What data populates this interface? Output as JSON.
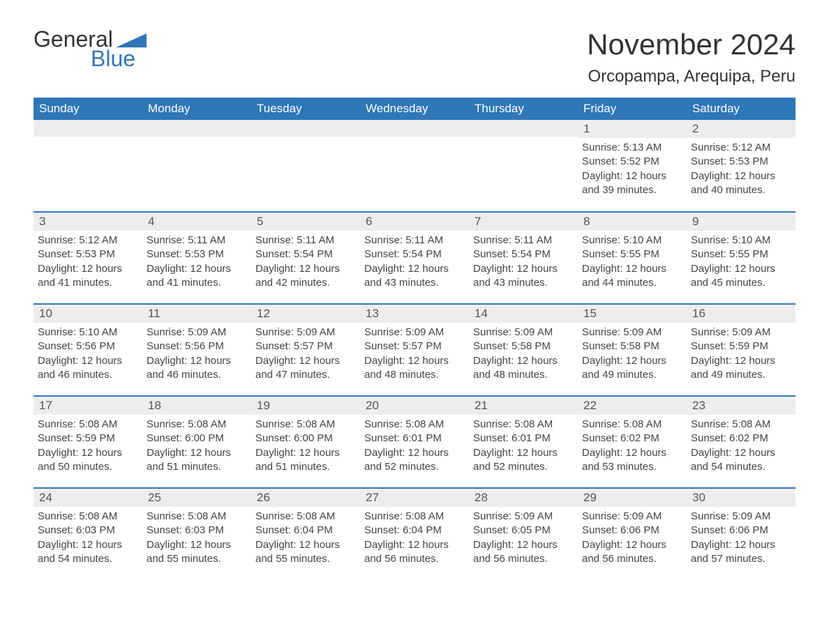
{
  "colors": {
    "brand_blue": "#2e77b8",
    "header_bg": "#2e77b8",
    "header_text": "#ffffff",
    "daynum_bg": "#ededed",
    "daynum_text": "#555555",
    "body_text": "#444444",
    "row_separator": "#2e77b8",
    "page_bg": "#ffffff"
  },
  "typography": {
    "font_family": "Arial, Helvetica, sans-serif",
    "month_title_size_pt": 32,
    "location_size_pt": 18,
    "weekday_header_size_pt": 13,
    "daynum_size_pt": 13,
    "body_size_pt": 11
  },
  "logo": {
    "word1": "General",
    "word2": "Blue"
  },
  "title": "November 2024",
  "location": "Orcopampa, Arequipa, Peru",
  "weekdays": [
    "Sunday",
    "Monday",
    "Tuesday",
    "Wednesday",
    "Thursday",
    "Friday",
    "Saturday"
  ],
  "calendar": {
    "type": "table",
    "columns": 7,
    "weeks": [
      [
        null,
        null,
        null,
        null,
        null,
        {
          "day": "1",
          "sunrise": "Sunrise: 5:13 AM",
          "sunset": "Sunset: 5:52 PM",
          "daylight1": "Daylight: 12 hours",
          "daylight2": "and 39 minutes."
        },
        {
          "day": "2",
          "sunrise": "Sunrise: 5:12 AM",
          "sunset": "Sunset: 5:53 PM",
          "daylight1": "Daylight: 12 hours",
          "daylight2": "and 40 minutes."
        }
      ],
      [
        {
          "day": "3",
          "sunrise": "Sunrise: 5:12 AM",
          "sunset": "Sunset: 5:53 PM",
          "daylight1": "Daylight: 12 hours",
          "daylight2": "and 41 minutes."
        },
        {
          "day": "4",
          "sunrise": "Sunrise: 5:11 AM",
          "sunset": "Sunset: 5:53 PM",
          "daylight1": "Daylight: 12 hours",
          "daylight2": "and 41 minutes."
        },
        {
          "day": "5",
          "sunrise": "Sunrise: 5:11 AM",
          "sunset": "Sunset: 5:54 PM",
          "daylight1": "Daylight: 12 hours",
          "daylight2": "and 42 minutes."
        },
        {
          "day": "6",
          "sunrise": "Sunrise: 5:11 AM",
          "sunset": "Sunset: 5:54 PM",
          "daylight1": "Daylight: 12 hours",
          "daylight2": "and 43 minutes."
        },
        {
          "day": "7",
          "sunrise": "Sunrise: 5:11 AM",
          "sunset": "Sunset: 5:54 PM",
          "daylight1": "Daylight: 12 hours",
          "daylight2": "and 43 minutes."
        },
        {
          "day": "8",
          "sunrise": "Sunrise: 5:10 AM",
          "sunset": "Sunset: 5:55 PM",
          "daylight1": "Daylight: 12 hours",
          "daylight2": "and 44 minutes."
        },
        {
          "day": "9",
          "sunrise": "Sunrise: 5:10 AM",
          "sunset": "Sunset: 5:55 PM",
          "daylight1": "Daylight: 12 hours",
          "daylight2": "and 45 minutes."
        }
      ],
      [
        {
          "day": "10",
          "sunrise": "Sunrise: 5:10 AM",
          "sunset": "Sunset: 5:56 PM",
          "daylight1": "Daylight: 12 hours",
          "daylight2": "and 46 minutes."
        },
        {
          "day": "11",
          "sunrise": "Sunrise: 5:09 AM",
          "sunset": "Sunset: 5:56 PM",
          "daylight1": "Daylight: 12 hours",
          "daylight2": "and 46 minutes."
        },
        {
          "day": "12",
          "sunrise": "Sunrise: 5:09 AM",
          "sunset": "Sunset: 5:57 PM",
          "daylight1": "Daylight: 12 hours",
          "daylight2": "and 47 minutes."
        },
        {
          "day": "13",
          "sunrise": "Sunrise: 5:09 AM",
          "sunset": "Sunset: 5:57 PM",
          "daylight1": "Daylight: 12 hours",
          "daylight2": "and 48 minutes."
        },
        {
          "day": "14",
          "sunrise": "Sunrise: 5:09 AM",
          "sunset": "Sunset: 5:58 PM",
          "daylight1": "Daylight: 12 hours",
          "daylight2": "and 48 minutes."
        },
        {
          "day": "15",
          "sunrise": "Sunrise: 5:09 AM",
          "sunset": "Sunset: 5:58 PM",
          "daylight1": "Daylight: 12 hours",
          "daylight2": "and 49 minutes."
        },
        {
          "day": "16",
          "sunrise": "Sunrise: 5:09 AM",
          "sunset": "Sunset: 5:59 PM",
          "daylight1": "Daylight: 12 hours",
          "daylight2": "and 49 minutes."
        }
      ],
      [
        {
          "day": "17",
          "sunrise": "Sunrise: 5:08 AM",
          "sunset": "Sunset: 5:59 PM",
          "daylight1": "Daylight: 12 hours",
          "daylight2": "and 50 minutes."
        },
        {
          "day": "18",
          "sunrise": "Sunrise: 5:08 AM",
          "sunset": "Sunset: 6:00 PM",
          "daylight1": "Daylight: 12 hours",
          "daylight2": "and 51 minutes."
        },
        {
          "day": "19",
          "sunrise": "Sunrise: 5:08 AM",
          "sunset": "Sunset: 6:00 PM",
          "daylight1": "Daylight: 12 hours",
          "daylight2": "and 51 minutes."
        },
        {
          "day": "20",
          "sunrise": "Sunrise: 5:08 AM",
          "sunset": "Sunset: 6:01 PM",
          "daylight1": "Daylight: 12 hours",
          "daylight2": "and 52 minutes."
        },
        {
          "day": "21",
          "sunrise": "Sunrise: 5:08 AM",
          "sunset": "Sunset: 6:01 PM",
          "daylight1": "Daylight: 12 hours",
          "daylight2": "and 52 minutes."
        },
        {
          "day": "22",
          "sunrise": "Sunrise: 5:08 AM",
          "sunset": "Sunset: 6:02 PM",
          "daylight1": "Daylight: 12 hours",
          "daylight2": "and 53 minutes."
        },
        {
          "day": "23",
          "sunrise": "Sunrise: 5:08 AM",
          "sunset": "Sunset: 6:02 PM",
          "daylight1": "Daylight: 12 hours",
          "daylight2": "and 54 minutes."
        }
      ],
      [
        {
          "day": "24",
          "sunrise": "Sunrise: 5:08 AM",
          "sunset": "Sunset: 6:03 PM",
          "daylight1": "Daylight: 12 hours",
          "daylight2": "and 54 minutes."
        },
        {
          "day": "25",
          "sunrise": "Sunrise: 5:08 AM",
          "sunset": "Sunset: 6:03 PM",
          "daylight1": "Daylight: 12 hours",
          "daylight2": "and 55 minutes."
        },
        {
          "day": "26",
          "sunrise": "Sunrise: 5:08 AM",
          "sunset": "Sunset: 6:04 PM",
          "daylight1": "Daylight: 12 hours",
          "daylight2": "and 55 minutes."
        },
        {
          "day": "27",
          "sunrise": "Sunrise: 5:08 AM",
          "sunset": "Sunset: 6:04 PM",
          "daylight1": "Daylight: 12 hours",
          "daylight2": "and 56 minutes."
        },
        {
          "day": "28",
          "sunrise": "Sunrise: 5:09 AM",
          "sunset": "Sunset: 6:05 PM",
          "daylight1": "Daylight: 12 hours",
          "daylight2": "and 56 minutes."
        },
        {
          "day": "29",
          "sunrise": "Sunrise: 5:09 AM",
          "sunset": "Sunset: 6:06 PM",
          "daylight1": "Daylight: 12 hours",
          "daylight2": "and 56 minutes."
        },
        {
          "day": "30",
          "sunrise": "Sunrise: 5:09 AM",
          "sunset": "Sunset: 6:06 PM",
          "daylight1": "Daylight: 12 hours",
          "daylight2": "and 57 minutes."
        }
      ]
    ]
  }
}
